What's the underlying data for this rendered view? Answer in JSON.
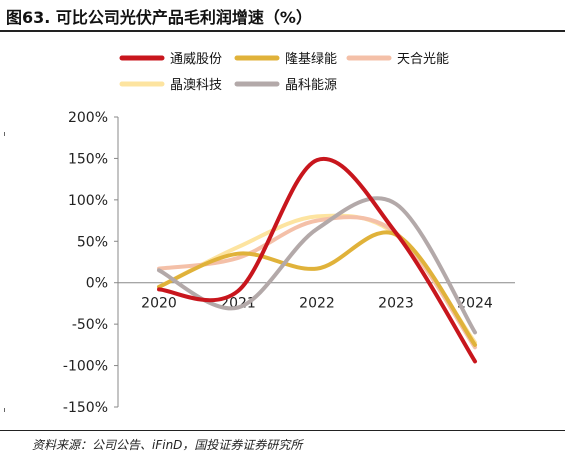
{
  "figure": {
    "title": "图63. 可比公司光伏产品毛利润增速（%）",
    "source": "资料来源：公司公告、iFinD，国投证券证券研究所"
  },
  "chart_data": {
    "type": "line",
    "title": "",
    "xlabel": "",
    "ylabel": "",
    "categories": [
      "2020",
      "2021",
      "2022",
      "2023",
      "2024"
    ],
    "ylim": [
      -150,
      200
    ],
    "yticks": [
      -150,
      -100,
      -50,
      0,
      50,
      100,
      150,
      200
    ],
    "ytick_labels": [
      "-150%",
      "-100%",
      "-50%",
      "0%",
      "50%",
      "100%",
      "150%",
      "200%"
    ],
    "smooth": true,
    "grid": false,
    "legend_position": "top",
    "series": [
      {
        "name": "通威股份",
        "color": "#c8161d",
        "values": [
          -8,
          -10,
          148,
          60,
          -95
        ]
      },
      {
        "name": "隆基绿能",
        "color": "#e0b23a",
        "values": [
          -5,
          35,
          17,
          58,
          -75
        ]
      },
      {
        "name": "天合光能",
        "color": "#f4c0a8",
        "values": [
          17,
          30,
          75,
          60,
          -78
        ]
      },
      {
        "name": "晶澳科技",
        "color": "#fde4a0",
        "values": [
          -5,
          43,
          80,
          58,
          -72
        ]
      },
      {
        "name": "晶科能源",
        "color": "#b3a9a9",
        "values": [
          15,
          -30,
          65,
          95,
          -60
        ]
      }
    ]
  }
}
